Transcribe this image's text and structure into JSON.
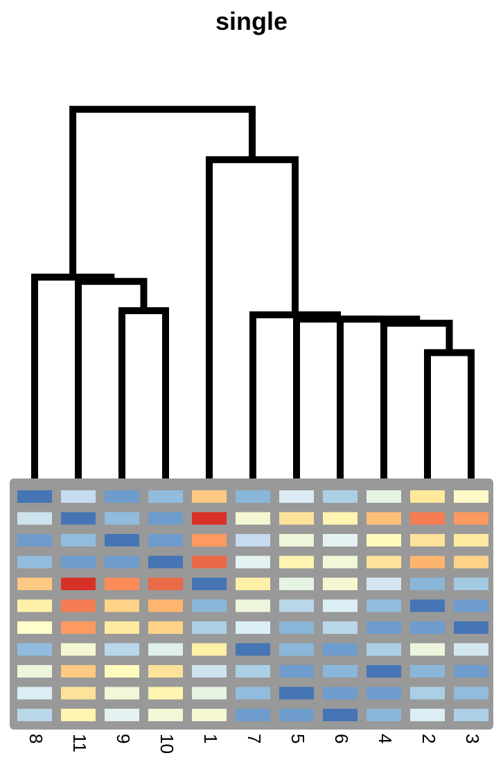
{
  "chart_data": {
    "type": "heatmap",
    "title": "single",
    "leaf_order": [
      "8",
      "11",
      "9",
      "10",
      "1",
      "7",
      "5",
      "6",
      "4",
      "2",
      "3"
    ],
    "dendrogram": {
      "merges": [
        {
          "left": "2",
          "right": "3",
          "height": 0.3
        },
        {
          "left": "9",
          "right": "10",
          "height": 0.4
        },
        {
          "left": "(2,3)",
          "right": "4",
          "height": 0.37
        },
        {
          "left": "((2,3),4)",
          "right": "6",
          "height": 0.38
        },
        {
          "left": "(((2,3),4),6)",
          "right": "5",
          "height": 0.38
        },
        {
          "left": "((((2,3),4),6),5)",
          "right": "7",
          "height": 0.39
        },
        {
          "left": "(9,10)",
          "right": "11",
          "height": 0.47
        },
        {
          "left": "((9,10),11)",
          "right": "8",
          "height": 0.48
        },
        {
          "left": "(((((2,3),4),6),5),7)",
          "right": "1",
          "height": 0.76
        },
        {
          "left": "(((9,10),11),8)",
          "right": "((((((2,3),4),6),5),7),1)",
          "height": 0.88
        }
      ]
    },
    "cell_colors": [
      [
        "#4575b4",
        "#c6dbef",
        "#6e9ccc",
        "#91bcdd",
        "#fdc983",
        "#8ab7d9",
        "#dbeaf3",
        "#abd0e6",
        "#e7f4e4",
        "#fee99d",
        "#fff8c8"
      ],
      [
        "#cde3ee",
        "#4575b4",
        "#91bcdd",
        "#6e9ccc",
        "#d73027",
        "#f4f7d2",
        "#fee29a",
        "#fff5b0",
        "#fdc07a",
        "#f67d53",
        "#fc9a5f"
      ],
      [
        "#6e9ccc",
        "#91bcdd",
        "#4575b4",
        "#6e9ccc",
        "#fc9a5f",
        "#c6dbef",
        "#edf6dc",
        "#e4f3f2",
        "#fffbbd",
        "#fee29a",
        "#feeb9f"
      ],
      [
        "#91bcdd",
        "#6e9ccc",
        "#6e9ccc",
        "#4575b4",
        "#ea6a48",
        "#e4f3f2",
        "#fff5b0",
        "#f0f8d8",
        "#fee29a",
        "#fdb56e",
        "#fed387"
      ],
      [
        "#fdc983",
        "#d73027",
        "#fc8d59",
        "#ea6a48",
        "#4575b4",
        "#fff0a8",
        "#e7f4e4",
        "#f4f7d2",
        "#d4e7f1",
        "#8ab7d9",
        "#a4cae2"
      ],
      [
        "#fff0a8",
        "#f67d53",
        "#fed387",
        "#fdb56e",
        "#8ab7d9",
        "#edf6dc",
        "#bad7ea",
        "#dbeef5",
        "#91bcdd",
        "#4575b4",
        "#6e9ccc"
      ],
      [
        "#ffffcc",
        "#fc9a5f",
        "#feeb9f",
        "#fed387",
        "#abd0e6",
        "#dbeef5",
        "#8ab7d9",
        "#bad7ea",
        "#6e9ccc",
        "#6e9ccc",
        "#4575b4"
      ],
      [
        "#91bcdd",
        "#f4f7d2",
        "#bad7ea",
        "#e0f0ec",
        "#fff0a8",
        "#4575b4",
        "#8ab7d9",
        "#6e9ccc",
        "#abd0e6",
        "#edf6dc",
        "#d4e7f1"
      ],
      [
        "#edf6dc",
        "#fdc983",
        "#fffbbd",
        "#fee29a",
        "#cde3ee",
        "#abd0e6",
        "#6e9ccc",
        "#8ab7d9",
        "#4575b4",
        "#8ab7d9",
        "#6e9ccc"
      ],
      [
        "#dbeef5",
        "#fee29a",
        "#f0f8d8",
        "#fff5b0",
        "#e7f4e4",
        "#91bcdd",
        "#4575b4",
        "#6e9ccc",
        "#6e9ccc",
        "#abd0e6",
        "#91bcdd"
      ],
      [
        "#bad7ea",
        "#fff5b0",
        "#e4f3f2",
        "#f0f8d8",
        "#f4f7d2",
        "#6e9ccc",
        "#6e9ccc",
        "#4575b4",
        "#8ab7d9",
        "#dbeef5",
        "#abd0e6"
      ]
    ],
    "grid_color": "#999999",
    "line_color": "#000000",
    "xlabel": "",
    "ylabel": ""
  }
}
